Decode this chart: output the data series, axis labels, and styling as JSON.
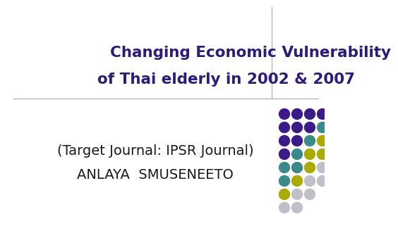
{
  "title_line1": "Changing Economic Vulnerability",
  "title_line2": "of Thai elderly in 2002 & 2007",
  "subtitle_line1": "(Target Journal: IPSR Journal)",
  "subtitle_line2": "ANLAYA  SMUSENEETO",
  "title_color": "#2E1A7A",
  "subtitle_color": "#1A1A1A",
  "bg_color": "#FFFFFF",
  "purple": "#3B1A8A",
  "teal": "#3A8A8A",
  "yellow": "#AAAA00",
  "gray": "#C0C0C8",
  "dot_rows": [
    [
      "purple",
      "purple",
      "purple",
      "purple"
    ],
    [
      "purple",
      "purple",
      "purple",
      "teal"
    ],
    [
      "purple",
      "purple",
      "teal",
      "yellow"
    ],
    [
      "purple",
      "teal",
      "yellow",
      "yellow"
    ],
    [
      "teal",
      "teal",
      "yellow",
      "gray"
    ],
    [
      "teal",
      "yellow",
      "gray",
      "gray"
    ],
    [
      "yellow",
      "gray",
      "gray",
      ""
    ],
    [
      "gray",
      "gray",
      "",
      ""
    ]
  ]
}
